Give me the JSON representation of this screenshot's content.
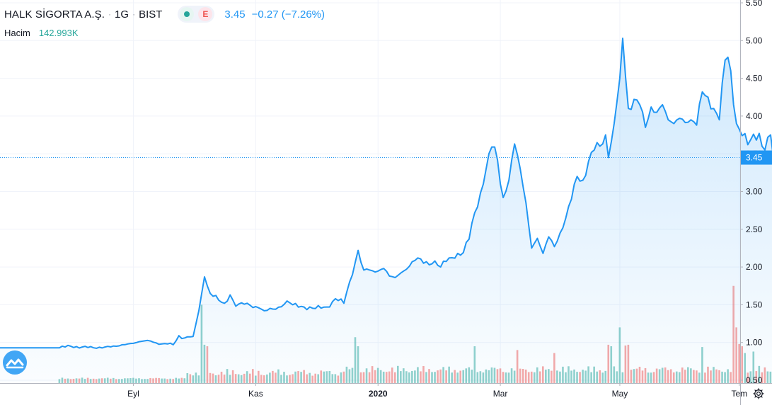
{
  "legend": {
    "symbol": "HALK SİGORTA A.Ş.",
    "separator": "·",
    "interval": "1G",
    "exchange": "BIST",
    "chip_letter": "E",
    "last_price": "3.45",
    "change": "−0.27 (−7.26%)",
    "volume_label": "Hacim",
    "volume_value": "142.993K"
  },
  "colors": {
    "line": "#2196f3",
    "area_top": "#cfe5fb",
    "grid": "#f0f3fa",
    "volume_up": "#26a69a",
    "volume_down": "#ef5350",
    "price_label_bg": "#2196f3"
  },
  "icons": {
    "settings": "gear-icon",
    "logo": "tradingview-logo-icon"
  },
  "chart_data": {
    "type": "area",
    "y_axis": {
      "ticks": [
        "5.50",
        "5.00",
        "4.50",
        "4.00",
        "3.50",
        "3.00",
        "2.50",
        "2.00",
        "1.50",
        "1.00",
        "0.50"
      ],
      "range": [
        0.5,
        5.5
      ],
      "current_label": "3.45",
      "current_value": 3.45
    },
    "x_axis": {
      "ticks": [
        {
          "label": "Eyl",
          "index": 26,
          "bold": false
        },
        {
          "label": "Kas",
          "index": 69,
          "bold": false
        },
        {
          "label": "2020",
          "index": 112,
          "bold": true
        },
        {
          "label": "Mar",
          "index": 155,
          "bold": false
        },
        {
          "label": "May",
          "index": 197,
          "bold": false
        },
        {
          "label": "Tem",
          "index": 239,
          "bold": false
        }
      ]
    },
    "price_series": {
      "name": "HALK SİGORTA A.Ş.",
      "keyframes": [
        [
          0,
          0.93
        ],
        [
          4,
          0.95
        ],
        [
          8,
          0.94
        ],
        [
          12,
          0.93
        ],
        [
          16,
          0.94
        ],
        [
          20,
          0.95
        ],
        [
          24,
          0.98
        ],
        [
          28,
          1.01
        ],
        [
          32,
          1.02
        ],
        [
          36,
          0.98
        ],
        [
          40,
          0.97
        ],
        [
          42,
          1.09
        ],
        [
          44,
          1.06
        ],
        [
          47,
          1.08
        ],
        [
          49,
          1.42
        ],
        [
          51,
          1.87
        ],
        [
          53,
          1.65
        ],
        [
          56,
          1.56
        ],
        [
          58,
          1.52
        ],
        [
          60,
          1.63
        ],
        [
          62,
          1.48
        ],
        [
          66,
          1.52
        ],
        [
          70,
          1.46
        ],
        [
          72,
          1.42
        ],
        [
          76,
          1.44
        ],
        [
          80,
          1.55
        ],
        [
          82,
          1.5
        ],
        [
          86,
          1.47
        ],
        [
          90,
          1.45
        ],
        [
          94,
          1.47
        ],
        [
          97,
          1.58
        ],
        [
          100,
          1.52
        ],
        [
          102,
          1.8
        ],
        [
          105,
          2.22
        ],
        [
          107,
          1.96
        ],
        [
          110,
          1.95
        ],
        [
          114,
          1.98
        ],
        [
          116,
          1.88
        ],
        [
          118,
          1.86
        ],
        [
          120,
          1.92
        ],
        [
          122,
          1.97
        ],
        [
          124,
          2.07
        ],
        [
          126,
          2.12
        ],
        [
          128,
          2.05
        ],
        [
          132,
          2.08
        ],
        [
          134,
          2.0
        ],
        [
          137,
          2.12
        ],
        [
          140,
          2.18
        ],
        [
          142,
          2.19
        ],
        [
          144,
          2.37
        ],
        [
          146,
          2.72
        ],
        [
          148,
          2.98
        ],
        [
          150,
          3.3
        ],
        [
          152,
          3.59
        ],
        [
          153,
          3.59
        ],
        [
          156,
          2.92
        ],
        [
          158,
          3.15
        ],
        [
          160,
          3.63
        ],
        [
          162,
          3.3
        ],
        [
          164,
          2.85
        ],
        [
          166,
          2.25
        ],
        [
          168,
          2.38
        ],
        [
          170,
          2.18
        ],
        [
          172,
          2.4
        ],
        [
          174,
          2.27
        ],
        [
          176,
          2.45
        ],
        [
          178,
          2.65
        ],
        [
          180,
          2.9
        ],
        [
          182,
          3.2
        ],
        [
          184,
          3.15
        ],
        [
          186,
          3.4
        ],
        [
          188,
          3.55
        ],
        [
          190,
          3.6
        ],
        [
          192,
          3.75
        ],
        [
          193,
          3.45
        ],
        [
          195,
          3.9
        ],
        [
          197,
          4.5
        ],
        [
          198,
          5.03
        ],
        [
          200,
          4.1
        ],
        [
          202,
          4.22
        ],
        [
          204,
          4.15
        ],
        [
          206,
          3.85
        ],
        [
          208,
          4.12
        ],
        [
          210,
          4.05
        ],
        [
          212,
          4.15
        ],
        [
          214,
          3.95
        ],
        [
          216,
          3.9
        ],
        [
          218,
          3.97
        ],
        [
          222,
          3.95
        ],
        [
          224,
          3.88
        ],
        [
          226,
          4.32
        ],
        [
          228,
          4.25
        ],
        [
          230,
          4.1
        ],
        [
          232,
          3.95
        ],
        [
          234,
          4.74
        ],
        [
          235,
          4.78
        ],
        [
          236,
          4.6
        ],
        [
          238,
          3.9
        ],
        [
          240,
          3.74
        ],
        [
          242,
          3.62
        ],
        [
          244,
          3.76
        ],
        [
          246,
          3.77
        ],
        [
          247,
          3.6
        ],
        [
          248,
          3.55
        ],
        [
          250,
          3.75
        ],
        [
          251,
          3.45
        ]
      ]
    },
    "volume_series": {
      "name": "Hacim",
      "spikes": [
        [
          50,
          1.5
        ],
        [
          51,
          0.97
        ],
        [
          52,
          0.95
        ],
        [
          104,
          1.07
        ],
        [
          105,
          0.95
        ],
        [
          146,
          0.95
        ],
        [
          161,
          0.9
        ],
        [
          174,
          0.86
        ],
        [
          193,
          0.97
        ],
        [
          194,
          0.95
        ],
        [
          197,
          1.2
        ],
        [
          199,
          0.96
        ],
        [
          200,
          0.97
        ],
        [
          226,
          0.94
        ],
        [
          237,
          1.75
        ],
        [
          238,
          1.2
        ],
        [
          239,
          0.98
        ],
        [
          240,
          0.95
        ],
        [
          241,
          0.86
        ],
        [
          244,
          0.88
        ],
        [
          251,
          0.83
        ]
      ]
    }
  }
}
